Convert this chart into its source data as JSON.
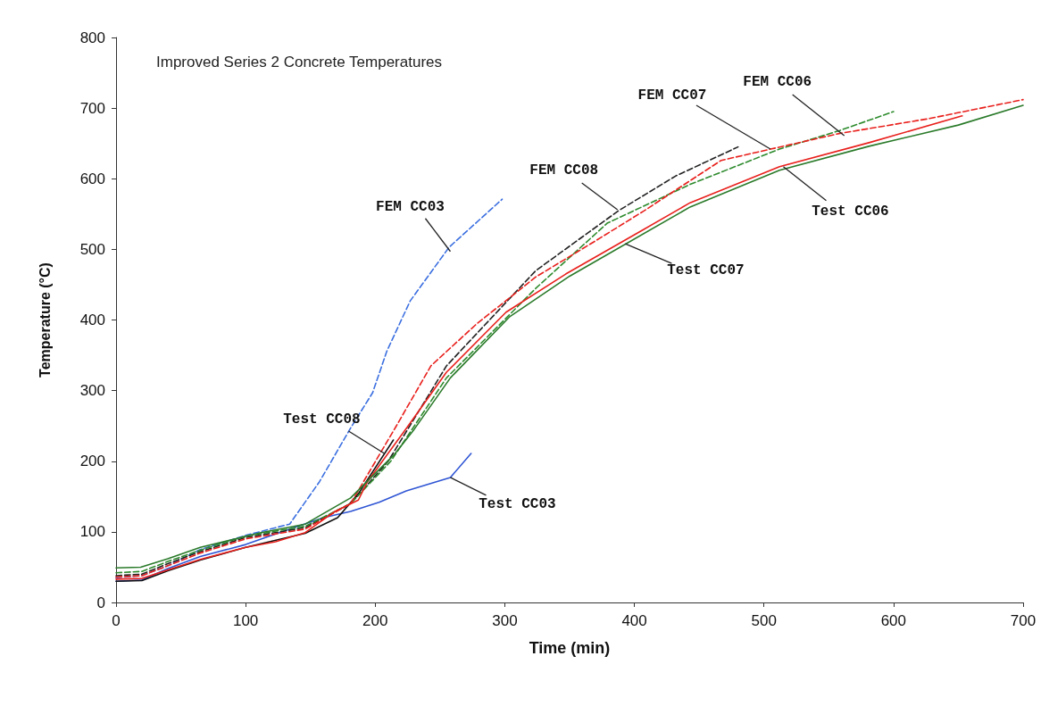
{
  "chart_data": {
    "type": "line",
    "title": "Improved Series 2 Concrete Temperatures",
    "xlabel": "Time (min)",
    "ylabel": "Temperature (°C)",
    "xlim": [
      0,
      700
    ],
    "xticks": [
      0,
      100,
      200,
      300,
      400,
      500,
      600,
      700
    ],
    "ylim": [
      0,
      800
    ],
    "yticks": [
      0,
      100,
      200,
      300,
      400,
      500,
      600,
      700,
      800
    ],
    "grid": false,
    "marker": "none",
    "series": [
      {
        "color": "#3b6fe0",
        "line_style": "dashed",
        "x": [
          0,
          20,
          40,
          65,
          100,
          134,
          157,
          181,
          198,
          209,
          227,
          257,
          298
        ],
        "values": [
          35,
          38,
          52,
          75,
          95,
          111,
          171,
          247,
          297,
          356,
          427,
          503,
          571
        ]
      },
      {
        "color": "#2f55d4",
        "line_style": "solid",
        "x": [
          0,
          20,
          40,
          65,
          100,
          134,
          160,
          181,
          203,
          224,
          258,
          274
        ],
        "values": [
          30,
          32,
          48,
          65,
          82,
          104,
          120,
          129,
          142,
          158,
          177,
          211
        ]
      },
      {
        "color": "#222222",
        "line_style": "dashed",
        "x": [
          0,
          20,
          40,
          65,
          100,
          146,
          181,
          210,
          255,
          324,
          388,
          432,
          480
        ],
        "values": [
          38,
          40,
          55,
          72,
          92,
          106,
          140,
          200,
          335,
          470,
          555,
          604,
          645
        ]
      },
      {
        "color": "#111111",
        "line_style": "solid",
        "x": [
          0,
          20,
          40,
          65,
          100,
          146,
          171,
          187,
          214
        ],
        "values": [
          30,
          31,
          45,
          60,
          78,
          98,
          120,
          154,
          230
        ]
      },
      {
        "color": "#2e8b2e",
        "line_style": "dashed",
        "x": [
          0,
          20,
          40,
          65,
          100,
          146,
          181,
          212,
          255,
          324,
          379,
          443,
          512,
          558,
          600
        ],
        "values": [
          42,
          44,
          58,
          74,
          94,
          108,
          140,
          200,
          318,
          445,
          537,
          592,
          642,
          668,
          695
        ]
      },
      {
        "color": "#e8201c",
        "line_style": "dashed",
        "x": [
          0,
          20,
          40,
          65,
          100,
          146,
          181,
          216,
          243,
          278,
          324,
          370,
          407,
          467,
          558,
          627,
          700
        ],
        "values": [
          36,
          38,
          52,
          70,
          90,
          104,
          140,
          249,
          335,
          394,
          461,
          512,
          554,
          626,
          664,
          685,
          712
        ]
      },
      {
        "color": "#e8201c",
        "line_style": "solid",
        "x": [
          0,
          20,
          40,
          65,
          100,
          123,
          146,
          169,
          187,
          194,
          225,
          255,
          301,
          347,
          407,
          443,
          512,
          581,
          653
        ],
        "values": [
          33,
          34,
          46,
          61,
          78,
          86,
          99,
          129,
          145,
          171,
          249,
          326,
          411,
          465,
          528,
          566,
          617,
          651,
          689
        ]
      },
      {
        "color": "#2a7a2a",
        "line_style": "solid",
        "x": [
          0,
          19,
          40,
          65,
          112,
          146,
          181,
          215,
          230,
          258,
          304,
          350,
          443,
          512,
          581,
          650,
          700
        ],
        "values": [
          49,
          50,
          62,
          78,
          99,
          111,
          148,
          210,
          245,
          318,
          405,
          462,
          560,
          612,
          646,
          676,
          704
        ]
      }
    ],
    "annotations": [
      {
        "text": "FEM CC03",
        "x": 258,
        "y": 497
      },
      {
        "text": "Test CC08",
        "x": 207,
        "y": 211
      },
      {
        "text": "FEM CC08",
        "x": 387,
        "y": 556
      },
      {
        "text": "FEM CC07",
        "x": 505,
        "y": 642
      },
      {
        "text": "FEM CC06",
        "x": 562,
        "y": 661
      },
      {
        "text": "Test CC06",
        "x": 515,
        "y": 617
      },
      {
        "text": "Test CC07",
        "x": 393,
        "y": 508
      },
      {
        "text": "Test CC03",
        "x": 258,
        "y": 177
      }
    ]
  }
}
